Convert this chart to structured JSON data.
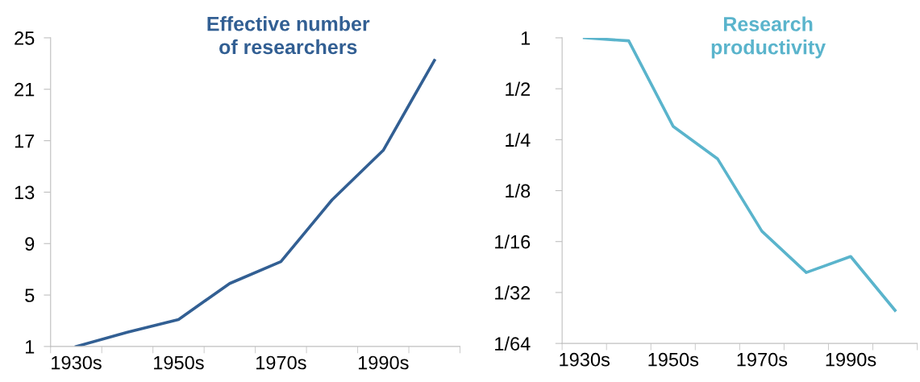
{
  "chart_data": [
    {
      "type": "line",
      "title": "Effective number\nof researchers",
      "categories": [
        "1930s",
        null,
        "1950s",
        null,
        "1970s",
        null,
        "1990s",
        null
      ],
      "values": [
        1,
        2.1,
        3.1,
        5.9,
        7.6,
        12.4,
        16.25,
        23.25
      ],
      "color": "#325f93",
      "ylim": [
        1,
        25
      ],
      "yticks": [
        1,
        5,
        9,
        13,
        17,
        21,
        25
      ],
      "grid": false
    },
    {
      "type": "line",
      "title": "Research\nproductivity",
      "categories": [
        "1930s",
        null,
        "1950s",
        null,
        "1970s",
        null,
        "1990s",
        null
      ],
      "values": [
        1,
        0.96,
        0.3,
        0.193,
        0.072,
        0.041,
        0.051,
        0.0245
      ],
      "color": "#5ab4cc",
      "log": true,
      "ylim": [
        0.015625,
        1
      ],
      "yticks": [
        {
          "value": 1,
          "label": "1"
        },
        {
          "value": 0.5,
          "label": "1/2"
        },
        {
          "value": 0.25,
          "label": "1/4"
        },
        {
          "value": 0.125,
          "label": "1/8"
        },
        {
          "value": 0.0625,
          "label": "1/16"
        },
        {
          "value": 0.03125,
          "label": "1/32"
        },
        {
          "value": 0.015625,
          "label": "1/64"
        }
      ],
      "grid": false
    }
  ]
}
